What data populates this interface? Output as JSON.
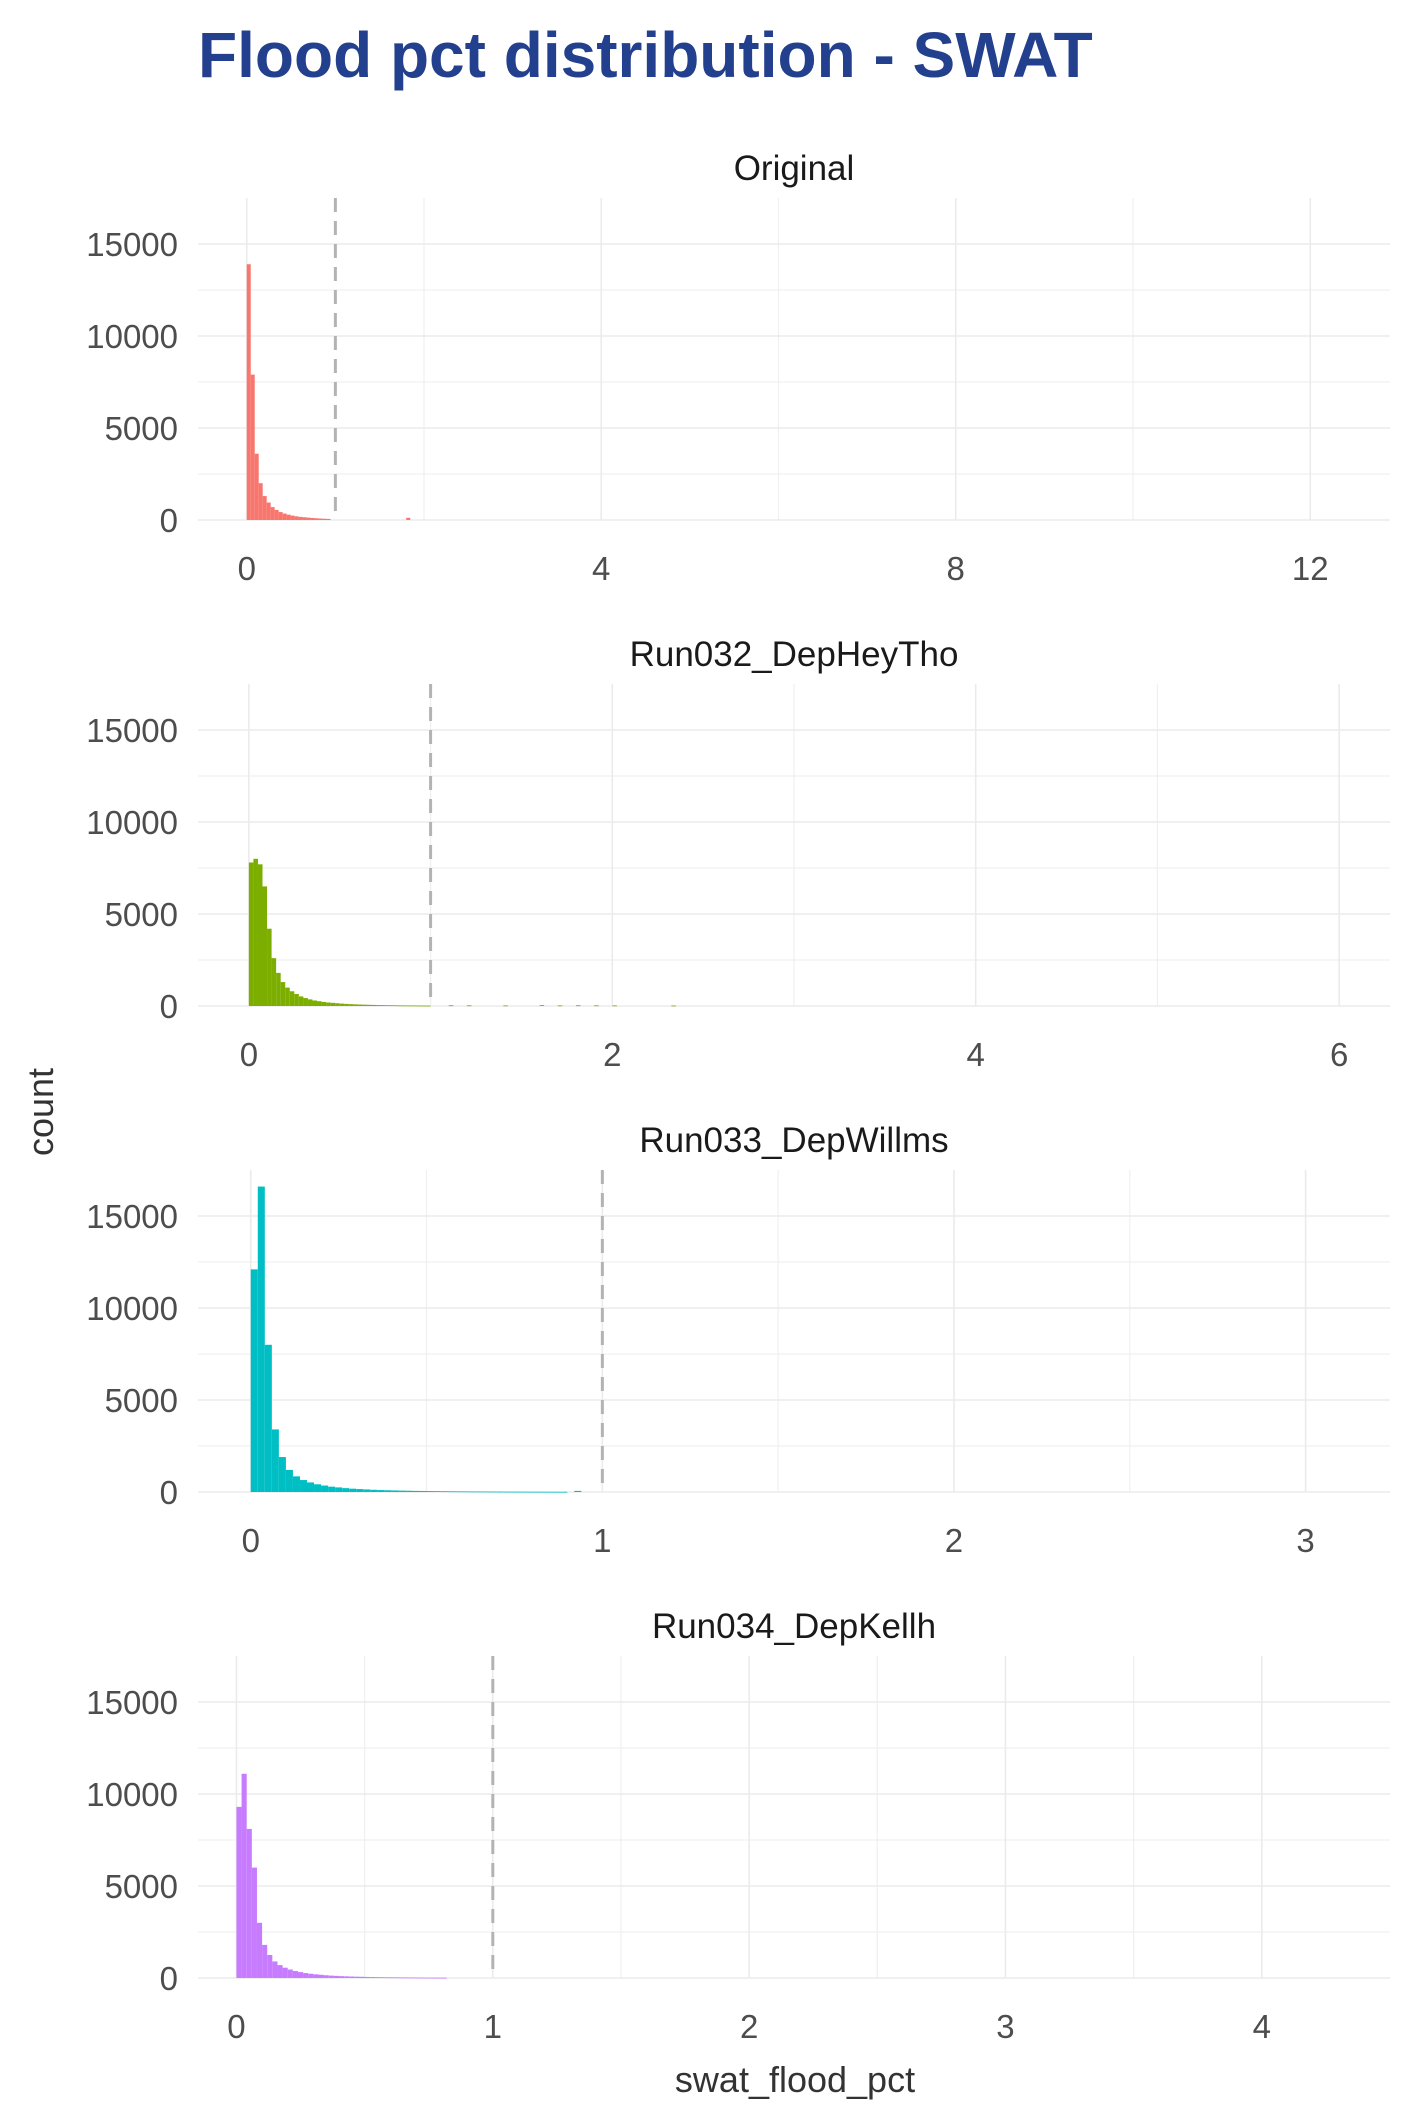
{
  "chart_data": {
    "type": "bar",
    "title": "Flood pct distribution - SWAT",
    "xlabel": "swat_flood_pct",
    "ylabel": "count",
    "grid": true,
    "legend": "none",
    "reference_line": {
      "x": 1,
      "style": "dashed",
      "color": "#b3b3b3"
    },
    "panels": [
      {
        "name": "Original",
        "color": "#f8766d",
        "xlim": [
          -0.55,
          12.9
        ],
        "ylim": [
          0,
          17500
        ],
        "xticks": [
          0,
          4,
          8,
          12
        ],
        "yticks": [
          0,
          5000,
          10000,
          15000
        ],
        "bin_width": 0.045,
        "x": [
          0.0225,
          0.0675,
          0.1125,
          0.1575,
          0.2025,
          0.2475,
          0.2925,
          0.3375,
          0.3825,
          0.4275,
          0.4725,
          0.5175,
          0.5625,
          0.6075,
          0.6525,
          0.6975,
          0.7425,
          0.7875,
          0.8325,
          0.8775,
          0.9225,
          1.8225
        ],
        "values": [
          13900,
          7900,
          3600,
          2000,
          1300,
          950,
          700,
          550,
          430,
          350,
          290,
          240,
          200,
          170,
          150,
          130,
          110,
          95,
          80,
          70,
          60,
          120
        ]
      },
      {
        "name": "Run032_DepHeyTho",
        "color": "#7cae00",
        "xlim": [
          -0.28,
          6.28
        ],
        "ylim": [
          0,
          17500
        ],
        "xticks": [
          0,
          2,
          4,
          6
        ],
        "yticks": [
          0,
          5000,
          10000,
          15000
        ],
        "bin_width": 0.025,
        "x": [
          0.0125,
          0.0375,
          0.0625,
          0.0875,
          0.1125,
          0.1375,
          0.1625,
          0.1875,
          0.2125,
          0.2375,
          0.2625,
          0.2875,
          0.3125,
          0.3375,
          0.3625,
          0.3875,
          0.4125,
          0.4375,
          0.4625,
          0.4875,
          0.5125,
          0.5375,
          0.5625,
          0.5875,
          0.6125,
          0.6375,
          0.6625,
          0.6875,
          0.7125,
          0.7375,
          0.7625,
          0.7875,
          0.8125,
          0.8375,
          0.8625,
          0.8875,
          0.9125,
          0.9375,
          0.9625,
          0.9875,
          1.1125,
          1.2125,
          1.4125,
          1.6125,
          1.7125,
          1.8125,
          1.9125,
          2.0125,
          2.3375
        ],
        "values": [
          7800,
          8000,
          7700,
          6500,
          4200,
          2600,
          1800,
          1300,
          1000,
          800,
          650,
          520,
          430,
          360,
          300,
          260,
          220,
          190,
          170,
          150,
          130,
          115,
          100,
          90,
          80,
          72,
          65,
          58,
          52,
          48,
          44,
          40,
          36,
          33,
          30,
          28,
          26,
          24,
          22,
          20,
          40,
          35,
          30,
          45,
          30,
          40,
          35,
          30,
          25
        ]
      },
      {
        "name": "Run033_DepWillms",
        "color": "#00bfc4",
        "xlim": [
          -0.15,
          3.24
        ],
        "ylim": [
          0,
          17500
        ],
        "xticks": [
          0,
          1,
          2,
          3
        ],
        "yticks": [
          0,
          5000,
          10000,
          15000
        ],
        "bin_width": 0.02,
        "x": [
          0.01,
          0.03,
          0.05,
          0.07,
          0.09,
          0.11,
          0.13,
          0.15,
          0.17,
          0.19,
          0.21,
          0.23,
          0.25,
          0.27,
          0.29,
          0.31,
          0.33,
          0.35,
          0.37,
          0.39,
          0.41,
          0.43,
          0.45,
          0.47,
          0.49,
          0.51,
          0.53,
          0.55,
          0.57,
          0.59,
          0.61,
          0.63,
          0.65,
          0.67,
          0.69,
          0.71,
          0.73,
          0.75,
          0.77,
          0.79,
          0.81,
          0.83,
          0.85,
          0.87,
          0.89,
          0.93
        ],
        "values": [
          12100,
          16600,
          8000,
          3400,
          1900,
          1200,
          850,
          650,
          520,
          420,
          350,
          290,
          250,
          210,
          180,
          160,
          140,
          120,
          105,
          95,
          85,
          75,
          68,
          60,
          55,
          50,
          45,
          41,
          37,
          34,
          31,
          28,
          26,
          24,
          22,
          20,
          18,
          17,
          16,
          15,
          14,
          13,
          12,
          11,
          10,
          60
        ]
      },
      {
        "name": "Run034_DepKellh",
        "color": "#c77cff",
        "xlim": [
          -0.15,
          4.5
        ],
        "ylim": [
          0,
          17500
        ],
        "xticks": [
          0,
          1,
          2,
          3,
          4
        ],
        "yticks": [
          0,
          5000,
          10000,
          15000
        ],
        "bin_width": 0.02,
        "x": [
          0.01,
          0.03,
          0.05,
          0.07,
          0.09,
          0.11,
          0.13,
          0.15,
          0.17,
          0.19,
          0.21,
          0.23,
          0.25,
          0.27,
          0.29,
          0.31,
          0.33,
          0.35,
          0.37,
          0.39,
          0.41,
          0.43,
          0.45,
          0.47,
          0.49,
          0.51,
          0.53,
          0.55,
          0.57,
          0.59,
          0.61,
          0.63,
          0.65,
          0.67,
          0.69,
          0.71,
          0.73,
          0.75,
          0.77,
          0.79,
          0.81
        ],
        "values": [
          9300,
          11100,
          8100,
          6000,
          3000,
          1800,
          1250,
          900,
          700,
          560,
          460,
          380,
          320,
          270,
          230,
          200,
          175,
          150,
          130,
          115,
          100,
          90,
          80,
          72,
          65,
          58,
          52,
          47,
          42,
          38,
          35,
          32,
          29,
          27,
          25,
          23,
          21,
          19,
          18,
          16,
          15
        ]
      }
    ]
  }
}
